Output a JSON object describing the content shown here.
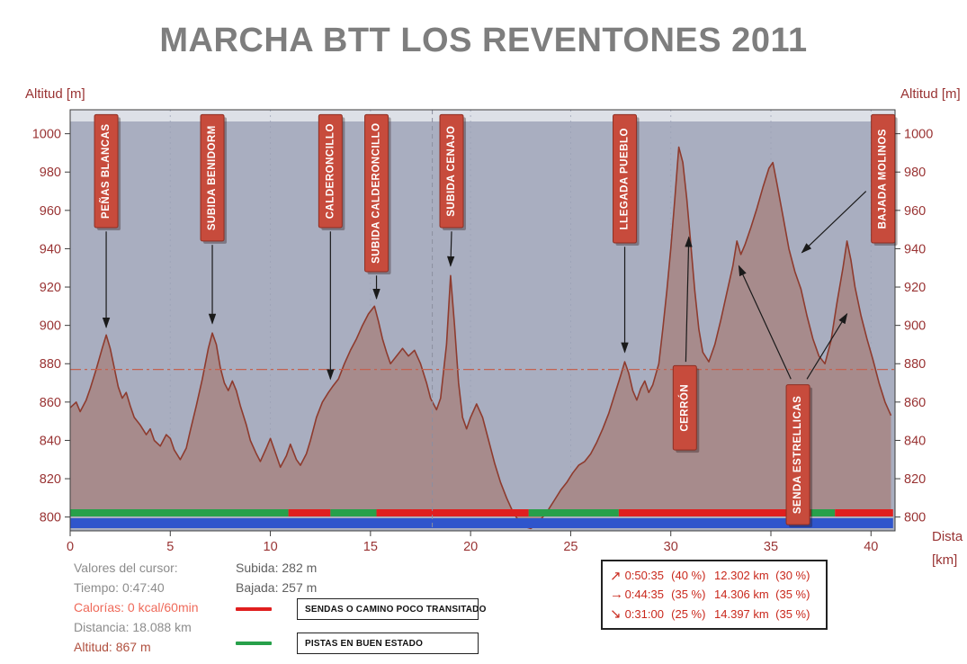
{
  "title": "MARCHA BTT LOS REVENTONES 2011",
  "axes": {
    "y_label_left": "Altitud [m]",
    "y_label_right": "Altitud [m]",
    "x_label_line1": "Dista",
    "x_label_line2": "[km]",
    "y_ticks": [
      800,
      820,
      840,
      860,
      880,
      900,
      920,
      940,
      960,
      980,
      1000
    ],
    "x_ticks": [
      0,
      5,
      10,
      15,
      20,
      25,
      30,
      35,
      40
    ]
  },
  "colors": {
    "plot_bg": "#a9aec0",
    "top_band": "#dde0e7",
    "area_fill": "#a78b8c",
    "area_stroke": "#8e3b2e",
    "axis_text": "#993333",
    "ref_line": "#c4614f",
    "cursor_line": "#8b8fa0",
    "grid": "#9aa0b5",
    "callout_bg": "#c74b3c",
    "callout_border": "#8e2f23",
    "stripe_red": "#e01f1f",
    "stripe_green": "#27a04a",
    "stripe_blue": "#2f55cc"
  },
  "chart_data": {
    "type": "area",
    "title": "MARCHA BTT LOS REVENTONES 2011",
    "xlabel": "Distancia [km]",
    "ylabel": "Altitud [m]",
    "xlim": [
      0,
      41.2
    ],
    "ylim": [
      792.8,
      1012.5
    ],
    "y_axis_ticks": [
      800,
      820,
      840,
      860,
      880,
      900,
      920,
      940,
      960,
      980,
      1000
    ],
    "x_axis_ticks": [
      0,
      5,
      10,
      15,
      20,
      25,
      30,
      35,
      40
    ],
    "cursor_km": 18.088,
    "reference_line_alt_m": 877,
    "profile": [
      [
        0,
        857
      ],
      [
        0.3,
        860
      ],
      [
        0.5,
        855
      ],
      [
        0.8,
        861
      ],
      [
        1.0,
        867
      ],
      [
        1.3,
        877
      ],
      [
        1.6,
        888
      ],
      [
        1.8,
        895
      ],
      [
        2.0,
        888
      ],
      [
        2.2,
        878
      ],
      [
        2.4,
        868
      ],
      [
        2.6,
        862
      ],
      [
        2.8,
        865
      ],
      [
        3.0,
        858
      ],
      [
        3.2,
        852
      ],
      [
        3.5,
        848
      ],
      [
        3.8,
        843
      ],
      [
        4.0,
        846
      ],
      [
        4.2,
        840
      ],
      [
        4.5,
        837
      ],
      [
        4.8,
        843
      ],
      [
        5.0,
        841
      ],
      [
        5.2,
        835
      ],
      [
        5.5,
        830
      ],
      [
        5.8,
        836
      ],
      [
        6.0,
        845
      ],
      [
        6.3,
        858
      ],
      [
        6.6,
        872
      ],
      [
        6.9,
        888
      ],
      [
        7.1,
        896
      ],
      [
        7.3,
        890
      ],
      [
        7.5,
        878
      ],
      [
        7.7,
        870
      ],
      [
        7.9,
        866
      ],
      [
        8.1,
        871
      ],
      [
        8.3,
        866
      ],
      [
        8.5,
        858
      ],
      [
        8.8,
        848
      ],
      [
        9.0,
        840
      ],
      [
        9.3,
        833
      ],
      [
        9.5,
        829
      ],
      [
        9.8,
        836
      ],
      [
        10.0,
        841
      ],
      [
        10.3,
        832
      ],
      [
        10.5,
        826
      ],
      [
        10.8,
        832
      ],
      [
        11.0,
        838
      ],
      [
        11.3,
        830
      ],
      [
        11.5,
        827
      ],
      [
        11.8,
        833
      ],
      [
        12.0,
        840
      ],
      [
        12.3,
        852
      ],
      [
        12.6,
        860
      ],
      [
        12.9,
        865
      ],
      [
        13.1,
        868
      ],
      [
        13.4,
        872
      ],
      [
        13.7,
        880
      ],
      [
        14.0,
        887
      ],
      [
        14.3,
        893
      ],
      [
        14.6,
        900
      ],
      [
        14.9,
        906
      ],
      [
        15.2,
        910
      ],
      [
        15.4,
        902
      ],
      [
        15.6,
        893
      ],
      [
        15.8,
        886
      ],
      [
        16.0,
        880
      ],
      [
        16.3,
        884
      ],
      [
        16.6,
        888
      ],
      [
        16.9,
        884
      ],
      [
        17.2,
        887
      ],
      [
        17.5,
        880
      ],
      [
        17.8,
        870
      ],
      [
        18.0,
        862
      ],
      [
        18.3,
        856
      ],
      [
        18.5,
        862
      ],
      [
        18.8,
        890
      ],
      [
        19.0,
        926
      ],
      [
        19.2,
        900
      ],
      [
        19.4,
        870
      ],
      [
        19.6,
        852
      ],
      [
        19.8,
        846
      ],
      [
        20.0,
        852
      ],
      [
        20.3,
        859
      ],
      [
        20.6,
        852
      ],
      [
        20.9,
        840
      ],
      [
        21.2,
        828
      ],
      [
        21.5,
        818
      ],
      [
        21.8,
        810
      ],
      [
        22.1,
        803
      ],
      [
        22.4,
        798
      ],
      [
        22.7,
        795
      ],
      [
        23.0,
        794
      ],
      [
        23.3,
        796
      ],
      [
        23.6,
        800
      ],
      [
        23.9,
        804
      ],
      [
        24.2,
        809
      ],
      [
        24.5,
        814
      ],
      [
        24.8,
        818
      ],
      [
        25.1,
        823
      ],
      [
        25.4,
        827
      ],
      [
        25.7,
        829
      ],
      [
        26.0,
        833
      ],
      [
        26.3,
        839
      ],
      [
        26.6,
        846
      ],
      [
        26.9,
        854
      ],
      [
        27.2,
        864
      ],
      [
        27.5,
        874
      ],
      [
        27.7,
        881
      ],
      [
        27.9,
        875
      ],
      [
        28.1,
        866
      ],
      [
        28.3,
        861
      ],
      [
        28.5,
        867
      ],
      [
        28.7,
        871
      ],
      [
        28.9,
        865
      ],
      [
        29.1,
        869
      ],
      [
        29.4,
        880
      ],
      [
        29.6,
        898
      ],
      [
        29.8,
        918
      ],
      [
        30.0,
        940
      ],
      [
        30.2,
        966
      ],
      [
        30.4,
        993
      ],
      [
        30.6,
        985
      ],
      [
        30.8,
        966
      ],
      [
        31.0,
        942
      ],
      [
        31.2,
        918
      ],
      [
        31.4,
        898
      ],
      [
        31.6,
        886
      ],
      [
        31.9,
        881
      ],
      [
        32.2,
        890
      ],
      [
        32.5,
        903
      ],
      [
        32.8,
        917
      ],
      [
        33.1,
        931
      ],
      [
        33.3,
        944
      ],
      [
        33.5,
        937
      ],
      [
        33.7,
        942
      ],
      [
        34.0,
        951
      ],
      [
        34.3,
        961
      ],
      [
        34.6,
        972
      ],
      [
        34.9,
        982
      ],
      [
        35.1,
        985
      ],
      [
        35.3,
        974
      ],
      [
        35.6,
        957
      ],
      [
        35.9,
        940
      ],
      [
        36.2,
        928
      ],
      [
        36.5,
        919
      ],
      [
        36.8,
        905
      ],
      [
        37.1,
        893
      ],
      [
        37.4,
        884
      ],
      [
        37.7,
        880
      ],
      [
        38.0,
        892
      ],
      [
        38.3,
        912
      ],
      [
        38.6,
        930
      ],
      [
        38.8,
        944
      ],
      [
        39.0,
        934
      ],
      [
        39.2,
        920
      ],
      [
        39.5,
        905
      ],
      [
        39.8,
        893
      ],
      [
        40.1,
        882
      ],
      [
        40.4,
        870
      ],
      [
        40.7,
        860
      ],
      [
        41.0,
        853
      ]
    ],
    "surface_segments": [
      {
        "from": 0.0,
        "to": 10.9,
        "type": "pista",
        "color": "#27a04a"
      },
      {
        "from": 10.9,
        "to": 13.0,
        "type": "senda",
        "color": "#e01f1f"
      },
      {
        "from": 13.0,
        "to": 15.3,
        "type": "pista",
        "color": "#27a04a"
      },
      {
        "from": 15.3,
        "to": 22.9,
        "type": "senda",
        "color": "#e01f1f"
      },
      {
        "from": 22.9,
        "to": 27.4,
        "type": "pista",
        "color": "#27a04a"
      },
      {
        "from": 27.4,
        "to": 37.0,
        "type": "senda",
        "color": "#e01f1f"
      },
      {
        "from": 37.0,
        "to": 38.2,
        "type": "pista",
        "color": "#27a04a"
      },
      {
        "from": 38.2,
        "to": 41.1,
        "type": "senda",
        "color": "#e01f1f"
      }
    ],
    "base_bar": {
      "from": 0.0,
      "to": 41.1,
      "color": "#2f55cc"
    },
    "annotations": [
      {
        "label": "PEÑAS BLANCAS",
        "km": 1.8,
        "top_alt": 1010,
        "bottom_alt": 951,
        "arrows": [
          [
            1.8,
            949,
            1.8,
            899
          ]
        ]
      },
      {
        "label": "SUBIDA BENIDORM",
        "km": 7.1,
        "top_alt": 1010,
        "bottom_alt": 944,
        "arrows": [
          [
            7.1,
            942,
            7.1,
            901
          ]
        ]
      },
      {
        "label": "CALDERONCILLO",
        "km": 13.0,
        "top_alt": 1010,
        "bottom_alt": 951,
        "arrows": [
          [
            13.0,
            949,
            13.0,
            872
          ]
        ]
      },
      {
        "label": "SUBIDA CALDERONCILLO",
        "km": 15.3,
        "top_alt": 1010,
        "bottom_alt": 928,
        "arrows": [
          [
            15.3,
            926,
            15.3,
            914
          ]
        ]
      },
      {
        "label": "SUBIDA CENAJO",
        "km": 19.05,
        "top_alt": 1010,
        "bottom_alt": 951,
        "arrows": [
          [
            19.05,
            949,
            19.0,
            931
          ]
        ]
      },
      {
        "label": "LLEGADA PUEBLO",
        "km": 27.7,
        "top_alt": 1010,
        "bottom_alt": 943,
        "arrows": [
          [
            27.7,
            941,
            27.7,
            886
          ]
        ]
      },
      {
        "label": "CERRÓN",
        "km": 30.7,
        "top_alt": 879,
        "bottom_alt": 835,
        "arrows": [
          [
            30.75,
            881,
            30.9,
            946
          ]
        ]
      },
      {
        "label": "SENDA ESTRELLICAS",
        "km": 36.35,
        "top_alt": 869,
        "bottom_alt": 796,
        "arrows": [
          [
            36.0,
            872,
            33.4,
            931
          ],
          [
            36.8,
            872,
            38.8,
            906
          ]
        ]
      },
      {
        "label": "BAJADA MOLINOS",
        "km": 40.6,
        "top_alt": 1010,
        "bottom_alt": 943,
        "arrows": [
          [
            39.75,
            970,
            36.55,
            938
          ]
        ]
      }
    ]
  },
  "cursor_panel": {
    "header": "Valores del cursor:",
    "time": "Tiempo: 0:47:40",
    "calories": "Calorías: 0 kcal/60min",
    "distance": "Distancia: 18.088 km",
    "altitude": "Altitud: 867 m"
  },
  "summary": {
    "subida": "Subida: 282 m",
    "bajada": "Bajada: 257 m"
  },
  "legend": [
    {
      "color": "#e01f1f",
      "label": "SENDAS O CAMINO POCO TRANSITADO"
    },
    {
      "color": "#27a04a",
      "label": "PISTAS EN BUEN ESTADO"
    }
  ],
  "stats_box": {
    "rows": [
      {
        "arrow": "↗",
        "time": "0:50:35",
        "time_pct": "(40 %)",
        "dist": "12.302 km",
        "dist_pct": "(30 %)"
      },
      {
        "arrow": "→",
        "time": "0:44:35",
        "time_pct": "(35 %)",
        "dist": "14.306 km",
        "dist_pct": "(35 %)"
      },
      {
        "arrow": "↘",
        "time": "0:31:00",
        "time_pct": "(25 %)",
        "dist": "14.397 km",
        "dist_pct": "(35 %)"
      }
    ]
  }
}
